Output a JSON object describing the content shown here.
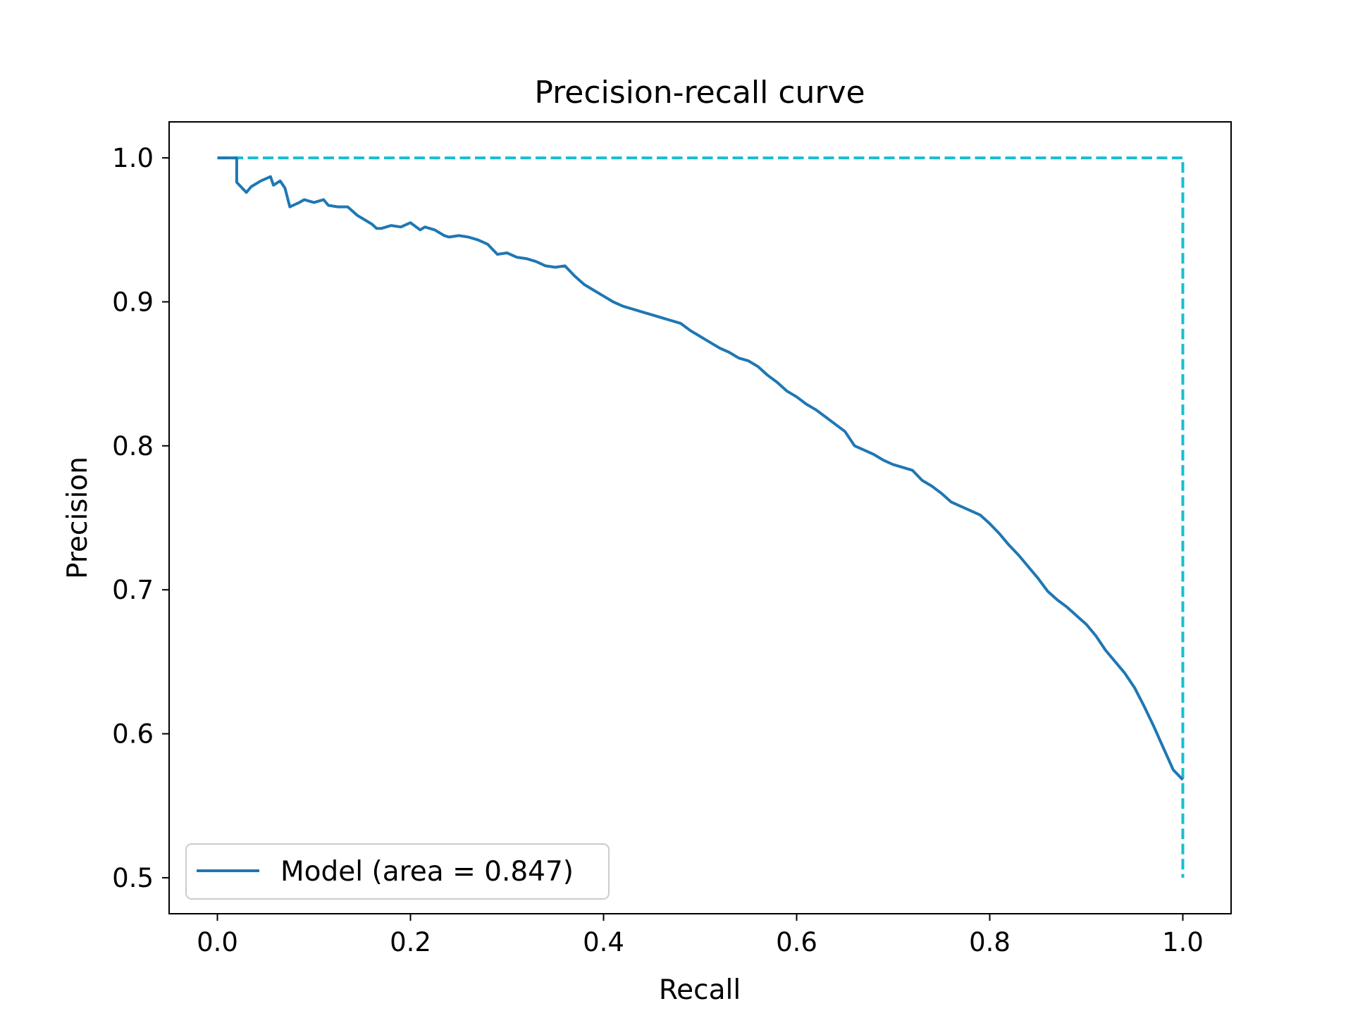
{
  "chart_data": {
    "type": "line",
    "title": "Precision-recall curve",
    "xlabel": "Recall",
    "ylabel": "Precision",
    "xlim": [
      -0.05,
      1.05
    ],
    "ylim": [
      0.475,
      1.025
    ],
    "xticks": [
      0.0,
      0.2,
      0.4,
      0.6,
      0.8,
      1.0
    ],
    "xtick_labels": [
      "0.0",
      "0.2",
      "0.4",
      "0.6",
      "0.8",
      "1.0"
    ],
    "yticks": [
      0.5,
      0.6,
      0.7,
      0.8,
      0.9,
      1.0
    ],
    "ytick_labels": [
      "0.5",
      "0.6",
      "0.7",
      "0.8",
      "0.9",
      "1.0"
    ],
    "grid": false,
    "legend_position": "lower-left",
    "series": [
      {
        "name": "Model (area = 0.847)",
        "color": "#1f77b4",
        "style": "solid",
        "x": [
          0.0,
          0.02,
          0.02,
          0.03,
          0.035,
          0.045,
          0.055,
          0.058,
          0.065,
          0.07,
          0.075,
          0.085,
          0.09,
          0.1,
          0.11,
          0.115,
          0.125,
          0.135,
          0.145,
          0.15,
          0.16,
          0.165,
          0.17,
          0.18,
          0.19,
          0.2,
          0.21,
          0.215,
          0.225,
          0.235,
          0.24,
          0.25,
          0.26,
          0.27,
          0.28,
          0.29,
          0.3,
          0.31,
          0.32,
          0.33,
          0.34,
          0.35,
          0.36,
          0.37,
          0.38,
          0.39,
          0.4,
          0.41,
          0.42,
          0.43,
          0.44,
          0.45,
          0.46,
          0.47,
          0.48,
          0.49,
          0.5,
          0.51,
          0.52,
          0.53,
          0.54,
          0.55,
          0.56,
          0.57,
          0.58,
          0.59,
          0.6,
          0.61,
          0.62,
          0.63,
          0.64,
          0.65,
          0.66,
          0.67,
          0.68,
          0.69,
          0.7,
          0.72,
          0.73,
          0.74,
          0.75,
          0.76,
          0.77,
          0.78,
          0.79,
          0.8,
          0.81,
          0.82,
          0.83,
          0.84,
          0.85,
          0.86,
          0.87,
          0.88,
          0.89,
          0.9,
          0.91,
          0.92,
          0.93,
          0.94,
          0.95,
          0.96,
          0.97,
          0.98,
          0.99,
          1.0
        ],
        "y": [
          1.0,
          1.0,
          0.983,
          0.976,
          0.98,
          0.984,
          0.987,
          0.981,
          0.984,
          0.979,
          0.966,
          0.969,
          0.971,
          0.969,
          0.971,
          0.967,
          0.966,
          0.966,
          0.96,
          0.958,
          0.954,
          0.951,
          0.951,
          0.953,
          0.952,
          0.955,
          0.95,
          0.952,
          0.95,
          0.946,
          0.945,
          0.946,
          0.945,
          0.943,
          0.94,
          0.933,
          0.934,
          0.931,
          0.93,
          0.928,
          0.925,
          0.924,
          0.925,
          0.918,
          0.912,
          0.908,
          0.904,
          0.9,
          0.897,
          0.895,
          0.893,
          0.891,
          0.889,
          0.887,
          0.885,
          0.88,
          0.876,
          0.872,
          0.868,
          0.865,
          0.861,
          0.859,
          0.855,
          0.849,
          0.844,
          0.838,
          0.834,
          0.829,
          0.825,
          0.82,
          0.815,
          0.81,
          0.8,
          0.797,
          0.794,
          0.79,
          0.787,
          0.783,
          0.776,
          0.772,
          0.767,
          0.761,
          0.758,
          0.755,
          0.752,
          0.746,
          0.739,
          0.731,
          0.724,
          0.716,
          0.708,
          0.699,
          0.693,
          0.688,
          0.682,
          0.676,
          0.668,
          0.658,
          0.65,
          0.642,
          0.632,
          0.619,
          0.605,
          0.59,
          0.575,
          0.568
        ]
      },
      {
        "name": "",
        "color": "#17becf",
        "style": "dashed",
        "x": [
          0.0,
          1.0,
          1.0
        ],
        "y": [
          1.0,
          1.0,
          0.5
        ]
      }
    ]
  }
}
